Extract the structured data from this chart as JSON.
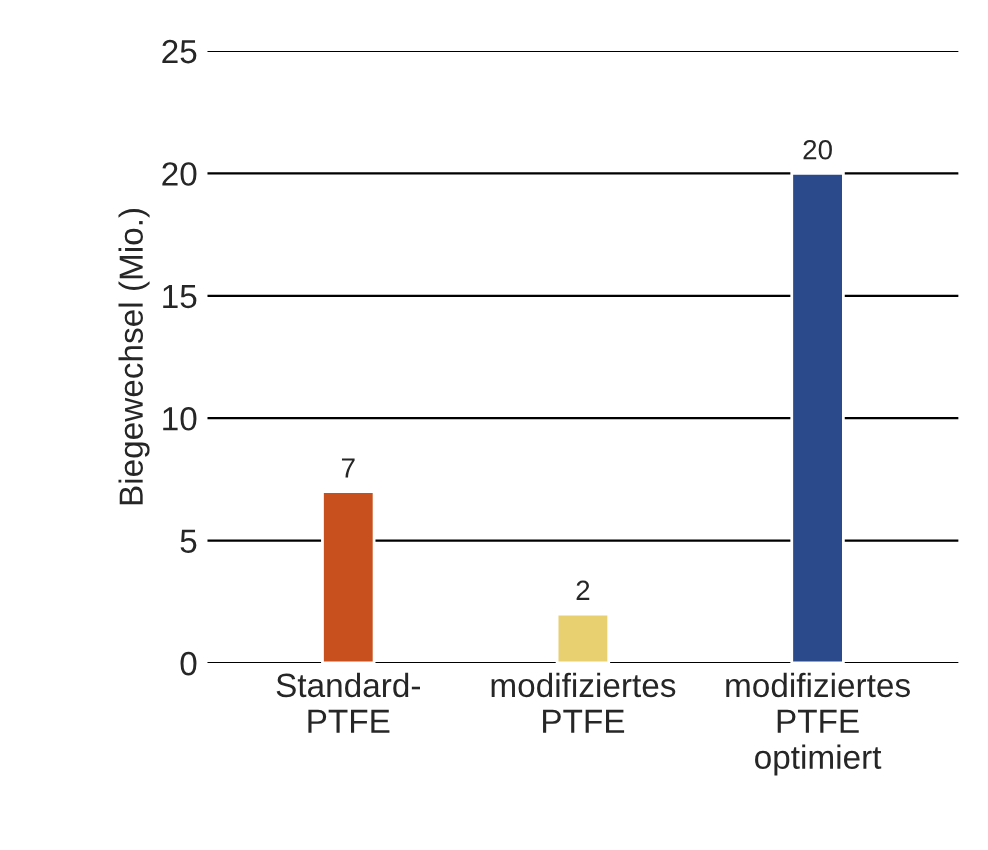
{
  "chart_data": {
    "type": "bar",
    "ylabel": "Biegewechsel (Mio.)",
    "categories": [
      "Standard-\nPTFE",
      "modifiziertes\nPTFE",
      "modifiziertes\nPTFE\noptimiert"
    ],
    "values": [
      7,
      2,
      20
    ],
    "colors": [
      "#c8501e",
      "#e8d070",
      "#2a4a8c"
    ],
    "ylim": [
      0,
      25
    ],
    "yticks": [
      0,
      5,
      10,
      15,
      20,
      25
    ],
    "grid": "y",
    "data_labels": true
  }
}
